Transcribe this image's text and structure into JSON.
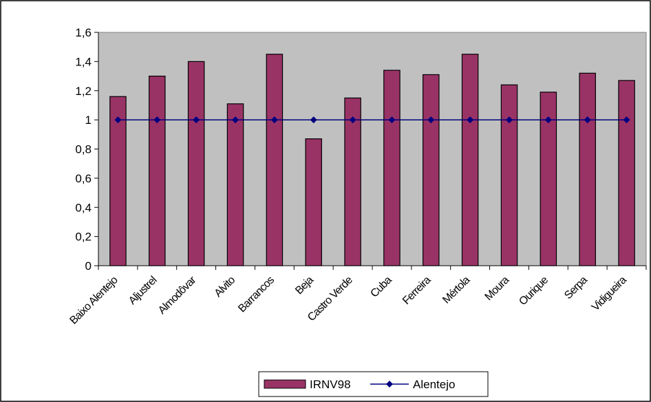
{
  "chart_data": {
    "type": "bar",
    "categories": [
      "Baixo Alentejo",
      "Aljustrel",
      "Almodôvar",
      "Alvito",
      "Barrancos",
      "Beja",
      "Castro Verde",
      "Cuba",
      "Ferreira",
      "Mértola",
      "Moura",
      "Ourique",
      "Serpa",
      "Vidigueira"
    ],
    "series": [
      {
        "name": "IRNV98",
        "type": "bar",
        "color": "#993366",
        "values": [
          1.16,
          1.3,
          1.4,
          1.11,
          1.45,
          0.87,
          1.15,
          1.34,
          1.31,
          1.45,
          1.24,
          1.19,
          1.32,
          1.27
        ]
      },
      {
        "name": "Alentejo",
        "type": "line",
        "color": "#000080",
        "values": [
          1,
          1,
          1,
          1,
          1,
          1,
          1,
          1,
          1,
          1,
          1,
          1,
          1,
          1
        ]
      }
    ],
    "yticks": [
      "0",
      "0,2",
      "0,4",
      "0,6",
      "0,8",
      "1",
      "1,2",
      "1,4",
      "1,6"
    ],
    "ylim": [
      0,
      1.6
    ],
    "title": "",
    "xlabel": "",
    "ylabel": "",
    "grid": false,
    "legend": "bottom-center",
    "plot_background": "#c0c0c0"
  }
}
